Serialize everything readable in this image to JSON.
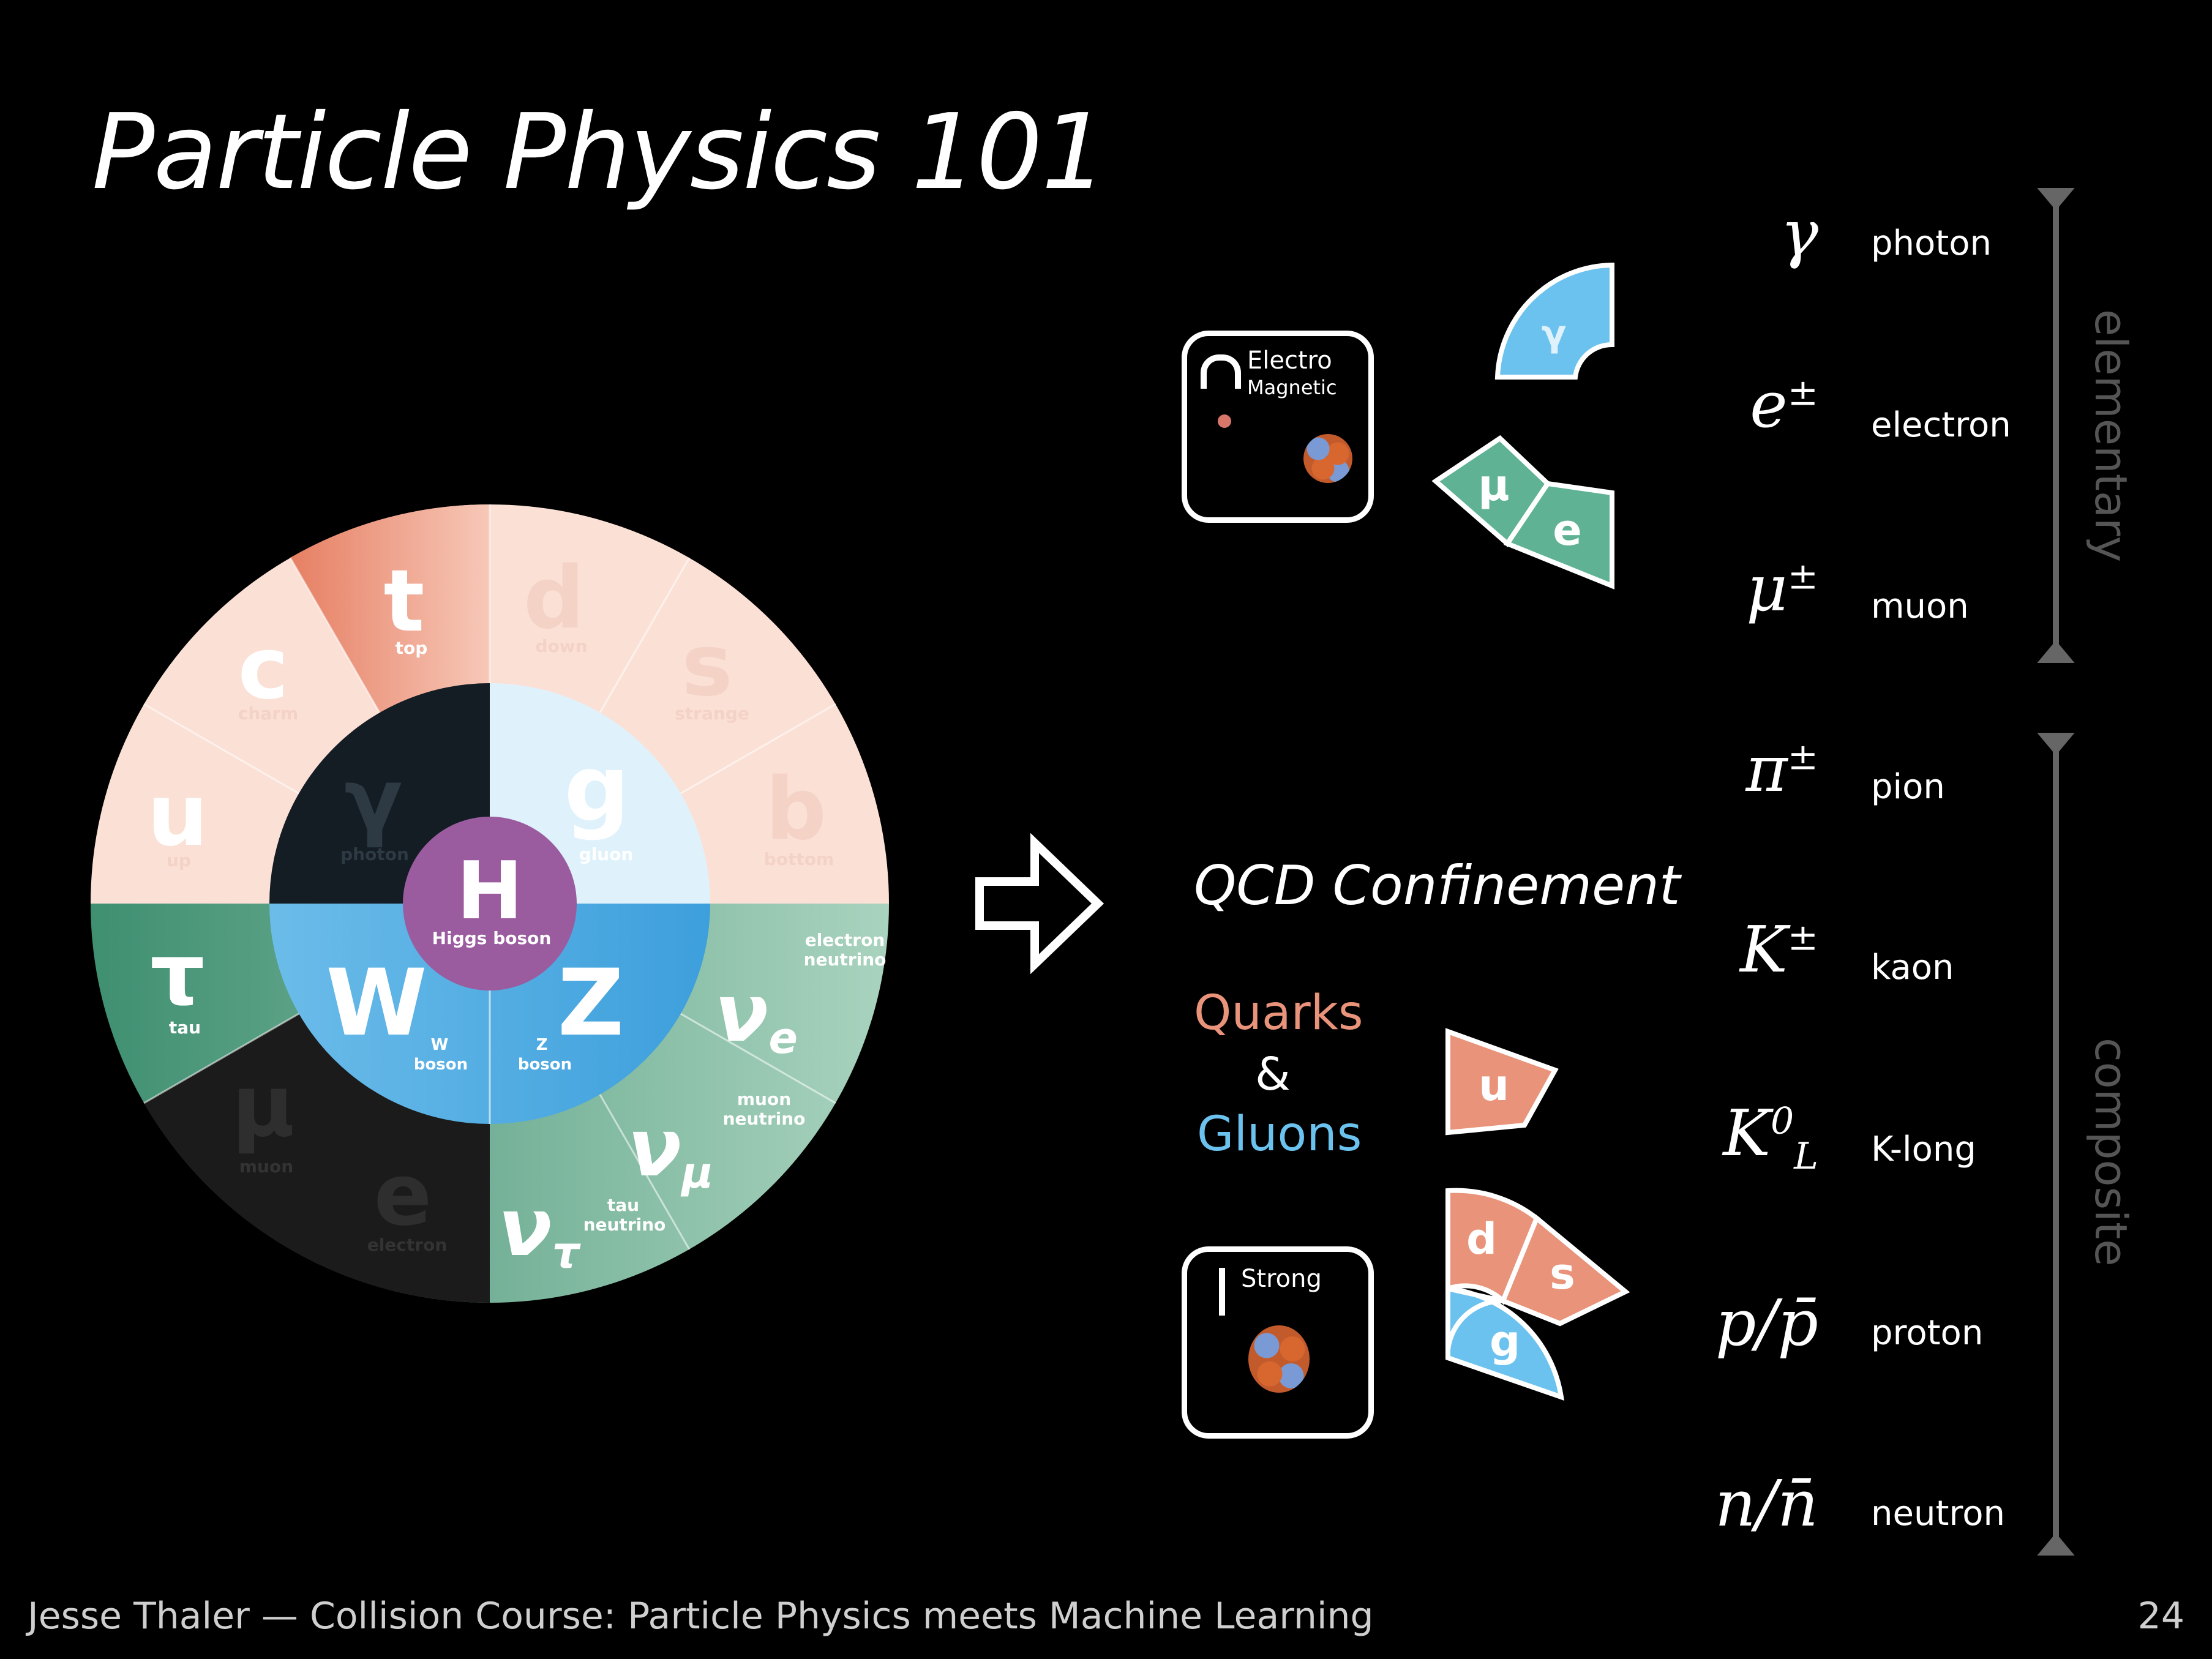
{
  "slide": {
    "title": "Particle Physics 101",
    "footer": "Jesse Thaler — Collision Course:  Particle Physics meets Machine Learning",
    "page_number": "24"
  },
  "wheel": {
    "higgs": {
      "symbol": "H",
      "name": "Higgs boson"
    },
    "bosons": [
      {
        "symbol": "γ",
        "name": "photon"
      },
      {
        "symbol": "g",
        "name": "gluon"
      },
      {
        "symbol": "W",
        "name": "W boson"
      },
      {
        "symbol": "Z",
        "name": "Z boson"
      }
    ],
    "quarks": [
      {
        "symbol": "t",
        "name": "top"
      },
      {
        "symbol": "d",
        "name": "down"
      },
      {
        "symbol": "s",
        "name": "strange"
      },
      {
        "symbol": "b",
        "name": "bottom"
      },
      {
        "symbol": "c",
        "name": "charm"
      },
      {
        "symbol": "u",
        "name": "up"
      }
    ],
    "leptons": [
      {
        "symbol": "τ",
        "name": "tau"
      },
      {
        "symbol": "μ",
        "name": "muon"
      },
      {
        "symbol": "e",
        "name": "electron"
      },
      {
        "symbol": "ν",
        "sub": "e",
        "name": "electron neutrino"
      },
      {
        "symbol": "ν",
        "sub": "μ",
        "name": "muon neutrino"
      },
      {
        "symbol": "ν",
        "sub": "τ",
        "name": "tau neutrino"
      }
    ]
  },
  "forces": {
    "em": {
      "line1": "Electro",
      "line2": "Magnetic"
    },
    "strong": {
      "line1": "Strong"
    }
  },
  "middle": {
    "confinement": "QCD Confinement",
    "quarks_label": "Quarks",
    "ampersand": "&",
    "gluons_label": "Gluons"
  },
  "tiles": {
    "photon": {
      "symbol": "γ",
      "name": "photon"
    },
    "muon": {
      "symbol": "μ",
      "name": "muon"
    },
    "electron": {
      "symbol": "e",
      "name": "electron"
    },
    "up": {
      "symbol": "u",
      "name": "up"
    },
    "down": {
      "symbol": "d",
      "name": "down"
    },
    "strange": {
      "symbol": "s",
      "name": "strange"
    },
    "gluon": {
      "symbol": "g",
      "name": "gluon"
    }
  },
  "particles": [
    {
      "sym": "γ",
      "sup": "",
      "sub": "",
      "name": "photon"
    },
    {
      "sym": "e",
      "sup": "±",
      "sub": "",
      "name": "electron"
    },
    {
      "sym": "μ",
      "sup": "±",
      "sub": "",
      "name": "muon"
    },
    {
      "sym": "π",
      "sup": "±",
      "sub": "",
      "name": "pion"
    },
    {
      "sym": "K",
      "sup": "±",
      "sub": "",
      "name": "kaon"
    },
    {
      "sym": "K",
      "sup": "0",
      "sub": "L",
      "name": "K-long"
    },
    {
      "sym": "p/p̄",
      "sup": "",
      "sub": "",
      "name": "proton"
    },
    {
      "sym": "n/n̄",
      "sup": "",
      "sub": "",
      "name": "neutron"
    }
  ],
  "groups": {
    "elementary": "elementary",
    "composite": "composite"
  },
  "colors": {
    "background": "#000000",
    "quark": "#e8937a",
    "quark_light": "#fbe3db",
    "lepton": "#4f9e80",
    "lepton_dark": "#1b1b1b",
    "boson": "#5ab2e6",
    "boson_light": "#dff2fc",
    "higgs": "#9a5c9f",
    "gluon_text": "#6cc2ee"
  }
}
